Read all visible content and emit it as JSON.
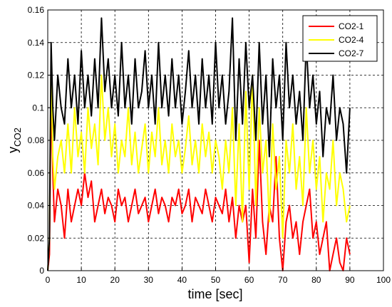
{
  "chart_data": {
    "type": "line",
    "xlabel": "time [sec]",
    "ylabel": "y",
    "ylabel_sub": "CO2",
    "xlim": [
      0,
      100
    ],
    "ylim": [
      0,
      0.16
    ],
    "x_ticks": [
      "0",
      "10",
      "20",
      "30",
      "40",
      "50",
      "60",
      "70",
      "80",
      "90",
      "100"
    ],
    "y_ticks": [
      "0",
      "0.02",
      "0.04",
      "0.06",
      "0.08",
      "0.1",
      "0.12",
      "0.14",
      "0.16"
    ],
    "grid": true,
    "legend_position": "top-right",
    "series": [
      {
        "name": "CO2-1",
        "color": "#ff0000",
        "x": [
          0,
          0.5,
          1,
          1.5,
          2,
          3,
          4,
          5,
          6,
          7,
          8,
          9,
          10,
          11,
          12,
          13,
          14,
          15,
          16,
          17,
          18,
          19,
          20,
          21,
          22,
          23,
          24,
          25,
          26,
          27,
          28,
          29,
          30,
          31,
          32,
          33,
          34,
          35,
          36,
          37,
          38,
          39,
          40,
          41,
          42,
          43,
          44,
          45,
          46,
          47,
          48,
          49,
          50,
          51,
          52,
          53,
          54,
          55,
          56,
          57,
          58,
          59,
          60,
          61,
          62,
          63,
          64,
          65,
          66,
          67,
          68,
          69,
          70,
          71,
          72,
          73,
          74,
          75,
          76,
          77,
          78,
          79,
          80,
          81,
          82,
          83,
          84,
          85,
          86,
          87,
          88,
          89,
          90
        ],
        "y": [
          0,
          0.01,
          0.11,
          0.06,
          0.03,
          0.05,
          0.04,
          0.02,
          0.05,
          0.03,
          0.04,
          0.05,
          0.04,
          0.06,
          0.045,
          0.055,
          0.03,
          0.04,
          0.05,
          0.035,
          0.045,
          0.04,
          0.03,
          0.05,
          0.04,
          0.045,
          0.03,
          0.04,
          0.05,
          0.035,
          0.04,
          0.045,
          0.03,
          0.04,
          0.05,
          0.035,
          0.045,
          0.04,
          0.03,
          0.045,
          0.04,
          0.05,
          0.035,
          0.04,
          0.05,
          0.03,
          0.045,
          0.04,
          0.035,
          0.05,
          0.04,
          0.03,
          0.045,
          0.04,
          0.035,
          0.05,
          0.03,
          0.045,
          0.02,
          0.04,
          0.03,
          0.04,
          0.005,
          0.05,
          0.02,
          0.08,
          0.03,
          0.01,
          0.04,
          0.03,
          0.07,
          0.02,
          0.0,
          0.03,
          0.04,
          0.02,
          0.03,
          0.01,
          0.03,
          0.04,
          0.05,
          0.02,
          0.03,
          0.01,
          0.02,
          0.03,
          0.0,
          0.01,
          0.02,
          0.005,
          0.0,
          0.02,
          0.01
        ]
      },
      {
        "name": "CO2-4",
        "color": "#ffff00",
        "x": [
          0,
          0.5,
          1,
          1.5,
          2,
          3,
          4,
          5,
          6,
          7,
          8,
          9,
          10,
          11,
          12,
          13,
          14,
          15,
          16,
          17,
          18,
          19,
          20,
          21,
          22,
          23,
          24,
          25,
          26,
          27,
          28,
          29,
          30,
          31,
          32,
          33,
          34,
          35,
          36,
          37,
          38,
          39,
          40,
          41,
          42,
          43,
          44,
          45,
          46,
          47,
          48,
          49,
          50,
          51,
          52,
          53,
          54,
          55,
          56,
          57,
          58,
          59,
          60,
          61,
          62,
          63,
          64,
          65,
          66,
          67,
          68,
          69,
          70,
          71,
          72,
          73,
          74,
          75,
          76,
          77,
          78,
          79,
          80,
          81,
          82,
          83,
          84,
          85,
          86,
          87,
          88,
          89,
          90
        ],
        "y": [
          0,
          0.02,
          0.13,
          0.07,
          0.05,
          0.07,
          0.08,
          0.06,
          0.09,
          0.06,
          0.1,
          0.07,
          0.085,
          0.06,
          0.1,
          0.075,
          0.09,
          0.065,
          0.12,
          0.08,
          0.1,
          0.07,
          0.09,
          0.06,
          0.08,
          0.07,
          0.1,
          0.065,
          0.085,
          0.06,
          0.075,
          0.09,
          0.06,
          0.085,
          0.07,
          0.1,
          0.065,
          0.08,
          0.06,
          0.09,
          0.07,
          0.08,
          0.06,
          0.075,
          0.095,
          0.065,
          0.08,
          0.06,
          0.09,
          0.07,
          0.085,
          0.06,
          0.08,
          0.07,
          0.05,
          0.08,
          0.06,
          0.1,
          0.04,
          0.09,
          0.03,
          0.11,
          0.05,
          0.12,
          0.04,
          0.1,
          0.06,
          0.08,
          0.03,
          0.09,
          0.05,
          0.07,
          0.02,
          0.08,
          0.06,
          0.09,
          0.05,
          0.07,
          0.04,
          0.1,
          0.06,
          0.08,
          0.05,
          0.07,
          0.03,
          0.06,
          0.05,
          0.08,
          0.04,
          0.06,
          0.05,
          0.03,
          0.04
        ]
      },
      {
        "name": "CO2-7",
        "color": "#000000",
        "x": [
          0,
          0.5,
          1,
          1.5,
          2,
          3,
          4,
          5,
          6,
          7,
          8,
          9,
          10,
          11,
          12,
          13,
          14,
          15,
          16,
          17,
          18,
          19,
          20,
          21,
          22,
          23,
          24,
          25,
          26,
          27,
          28,
          29,
          30,
          31,
          32,
          33,
          34,
          35,
          36,
          37,
          38,
          39,
          40,
          41,
          42,
          43,
          44,
          45,
          46,
          47,
          48,
          49,
          50,
          51,
          52,
          53,
          54,
          55,
          56,
          57,
          58,
          59,
          60,
          61,
          62,
          63,
          64,
          65,
          66,
          67,
          68,
          69,
          70,
          71,
          72,
          73,
          74,
          75,
          76,
          77,
          78,
          79,
          80,
          81,
          82,
          83,
          84,
          85,
          86,
          87,
          88,
          89,
          90
        ],
        "y": [
          0,
          0.02,
          0.14,
          0.1,
          0.08,
          0.12,
          0.1,
          0.09,
          0.13,
          0.1,
          0.12,
          0.09,
          0.135,
          0.1,
          0.12,
          0.095,
          0.13,
          0.1,
          0.155,
          0.11,
          0.13,
          0.1,
          0.12,
          0.095,
          0.14,
          0.1,
          0.12,
          0.09,
          0.13,
          0.1,
          0.11,
          0.135,
          0.1,
          0.12,
          0.09,
          0.14,
          0.1,
          0.12,
          0.095,
          0.13,
          0.1,
          0.12,
          0.09,
          0.11,
          0.135,
          0.1,
          0.12,
          0.09,
          0.13,
          0.1,
          0.12,
          0.09,
          0.14,
          0.1,
          0.12,
          0.09,
          0.11,
          0.155,
          0.08,
          0.13,
          0.09,
          0.14,
          0.1,
          0.12,
          0.08,
          0.14,
          0.09,
          0.12,
          0.07,
          0.13,
          0.1,
          0.12,
          0.08,
          0.14,
          0.1,
          0.12,
          0.09,
          0.11,
          0.08,
          0.14,
          0.1,
          0.12,
          0.09,
          0.11,
          0.07,
          0.1,
          0.09,
          0.12,
          0.08,
          0.1,
          0.09,
          0.06,
          0.1
        ]
      }
    ]
  }
}
